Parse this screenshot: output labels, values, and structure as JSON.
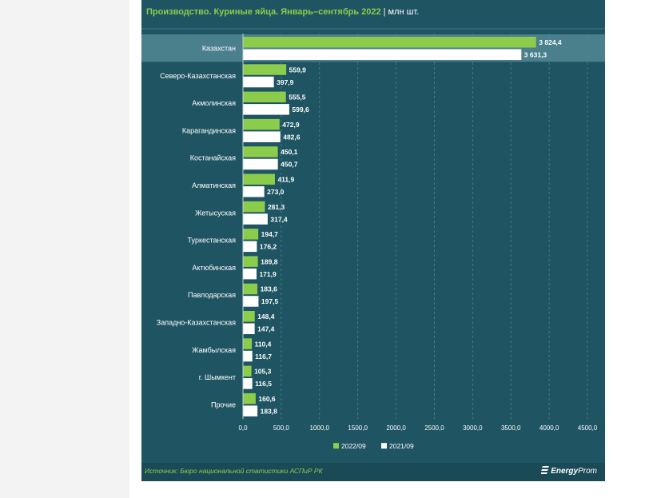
{
  "title": {
    "main": "Производство. Куриные яйца. Январь–сентябрь 2022",
    "separator": "|",
    "unit": "млн шт."
  },
  "footer": {
    "source": "Источник: Бюро национальной статистики АСПиР РК",
    "brand_bold": "Energy",
    "brand_light": "Prom"
  },
  "colors": {
    "background": "#1f5462",
    "highlight_row": "#4a7f8c",
    "series_2022": "#8ccc4b",
    "series_2021": "#ffffff",
    "title_accent": "#8ccc4b"
  },
  "chart_data": {
    "type": "bar",
    "orientation": "horizontal",
    "categories": [
      "Казахстан",
      "Северо-Казахстанская",
      "Акмолинская",
      "Карагандинская",
      "Костанайская",
      "Алматинская",
      "Жетысуская",
      "Туркестанская",
      "Актюбинская",
      "Павлодарская",
      "Западно-Казахстанская",
      "Жамбылская",
      "г. Шымкент",
      "Прочие"
    ],
    "series": [
      {
        "name": "2022/09",
        "values": [
          3824.4,
          559.9,
          555.5,
          472.9,
          450.1,
          411.9,
          281.3,
          194.7,
          189.8,
          183.6,
          148.4,
          110.4,
          105.3,
          160.6
        ],
        "labels": [
          "3 824,4",
          "559,9",
          "555,5",
          "472,9",
          "450,1",
          "411,9",
          "281,3",
          "194,7",
          "189,8",
          "183,6",
          "148,4",
          "110,4",
          "105,3",
          "160,6"
        ]
      },
      {
        "name": "2021/09",
        "values": [
          3631.3,
          397.9,
          599.6,
          482.6,
          450.7,
          273.0,
          317.4,
          176.2,
          171.9,
          197.5,
          147.4,
          116.7,
          116.5,
          183.8
        ],
        "labels": [
          "3 631,3",
          "397,9",
          "599,6",
          "482,6",
          "450,7",
          "273,0",
          "317,4",
          "176,2",
          "171,9",
          "197,5",
          "147,4",
          "116,7",
          "116,5",
          "183,8"
        ]
      }
    ],
    "xlim": [
      0,
      4500
    ],
    "x_ticks": [
      0,
      500,
      1000,
      1500,
      2000,
      2500,
      3000,
      3500,
      4000,
      4500
    ],
    "x_tick_labels": [
      "0,0",
      "500,0",
      "1000,0",
      "1500,0",
      "2000,0",
      "2500,0",
      "3000,0",
      "3500,0",
      "4000,0",
      "4500,0"
    ],
    "highlighted_category": "Казахстан",
    "grid": "vertical dashed",
    "legend_position": "bottom"
  }
}
